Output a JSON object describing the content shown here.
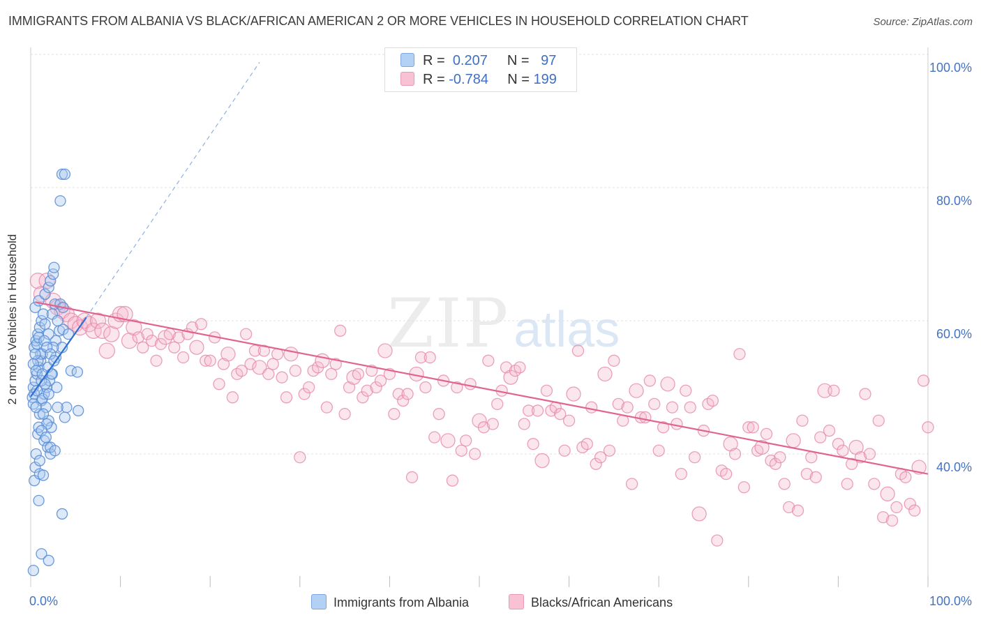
{
  "header": {
    "title": "IMMIGRANTS FROM ALBANIA VS BLACK/AFRICAN AMERICAN 2 OR MORE VEHICLES IN HOUSEHOLD CORRELATION CHART",
    "source": "Source: ZipAtlas.com"
  },
  "watermark": {
    "zip": "ZIP",
    "atlas": "atlas"
  },
  "legend": {
    "r_label": "R =",
    "n_label": "N =",
    "series1": {
      "r": "0.207",
      "n": "97"
    },
    "series2": {
      "r": "-0.784",
      "n": "199"
    }
  },
  "colors": {
    "albania_fill": "#a9c8f0",
    "albania_stroke": "#5b8fd6",
    "albania_line": "#2e6fd1",
    "black_fill": "#f7b6cd",
    "black_stroke": "#e58aa9",
    "black_line": "#e0648f",
    "tick_text": "#4472c4"
  },
  "chart_data": {
    "type": "scatter",
    "title": "IMMIGRANTS FROM ALBANIA VS BLACK/AFRICAN AMERICAN 2 OR MORE VEHICLES IN HOUSEHOLD CORRELATION CHART",
    "xlabel": "",
    "ylabel": "2 or more Vehicles in Household",
    "xlim": [
      0,
      100
    ],
    "ylim": [
      20,
      100
    ],
    "x_tick_labels": [
      "0.0%",
      "100.0%"
    ],
    "y_tick_labels": [
      "40.0%",
      "60.0%",
      "80.0%",
      "100.0%"
    ],
    "y_ticks": [
      40,
      60,
      80,
      100
    ],
    "grid": true,
    "legend_position": "top-center",
    "series": [
      {
        "name": "Immigrants from Albania",
        "r": 0.207,
        "n": 97,
        "trend": {
          "x": [
            0,
            6.2
          ],
          "y": [
            48.6,
            60.5
          ]
        },
        "trend_extension": {
          "x": [
            6.2,
            25.5
          ],
          "y": [
            60.5,
            98.8
          ]
        },
        "points": [
          [
            0.3,
            22.5
          ],
          [
            0.4,
            36
          ],
          [
            0.5,
            38
          ],
          [
            0.6,
            40
          ],
          [
            0.8,
            43
          ],
          [
            1.0,
            46
          ],
          [
            1.2,
            48
          ],
          [
            0.3,
            50
          ],
          [
            0.5,
            51
          ],
          [
            0.7,
            52
          ],
          [
            0.9,
            53
          ],
          [
            1.1,
            54
          ],
          [
            1.3,
            55
          ],
          [
            0.4,
            56
          ],
          [
            0.6,
            57
          ],
          [
            0.8,
            58
          ],
          [
            1.0,
            59
          ],
          [
            1.2,
            60
          ],
          [
            1.4,
            61
          ],
          [
            0.5,
            62
          ],
          [
            0.9,
            63
          ],
          [
            1.6,
            64
          ],
          [
            2.0,
            65
          ],
          [
            2.2,
            66
          ],
          [
            2.5,
            67
          ],
          [
            2.6,
            68
          ],
          [
            1.5,
            49
          ],
          [
            1.8,
            50
          ],
          [
            2.1,
            51
          ],
          [
            2.4,
            52
          ],
          [
            0.2,
            48.5
          ],
          [
            0.4,
            49
          ],
          [
            0.7,
            49.5
          ],
          [
            1.3,
            48.3
          ],
          [
            1.7,
            47
          ],
          [
            2.0,
            45
          ],
          [
            2.3,
            44
          ],
          [
            1.5,
            42
          ],
          [
            1.9,
            41
          ],
          [
            2.2,
            40
          ],
          [
            1.0,
            37
          ],
          [
            1.4,
            36.8
          ],
          [
            0.9,
            33
          ],
          [
            3.5,
            31
          ],
          [
            1.2,
            25
          ],
          [
            2.0,
            24
          ],
          [
            3.3,
            78
          ],
          [
            3.5,
            82
          ],
          [
            3.8,
            82
          ],
          [
            4.5,
            52.5
          ],
          [
            5.2,
            52.3
          ],
          [
            5.3,
            46.5
          ],
          [
            4.0,
            47
          ],
          [
            3.8,
            45.5
          ],
          [
            3.0,
            47
          ],
          [
            3.2,
            58.5
          ],
          [
            3.6,
            58.7
          ],
          [
            2.8,
            57
          ],
          [
            3.5,
            56
          ],
          [
            4.2,
            58
          ],
          [
            2.7,
            62.5
          ],
          [
            3.3,
            62.5
          ],
          [
            3.6,
            62
          ],
          [
            2.4,
            61
          ],
          [
            1.6,
            59.5
          ],
          [
            2.0,
            58
          ],
          [
            2.5,
            56
          ],
          [
            2.8,
            54.5
          ],
          [
            1.1,
            55
          ],
          [
            0.8,
            54
          ],
          [
            1.9,
            53
          ],
          [
            2.3,
            52
          ],
          [
            1.2,
            51
          ],
          [
            1.6,
            50.5
          ],
          [
            2.9,
            50
          ],
          [
            0.3,
            47.5
          ],
          [
            0.6,
            47
          ],
          [
            1.4,
            46
          ],
          [
            1.8,
            44.5
          ],
          [
            0.9,
            44
          ],
          [
            1.2,
            43.5
          ],
          [
            1.7,
            42.5
          ],
          [
            2.2,
            41
          ],
          [
            2.7,
            40.5
          ],
          [
            1.0,
            39
          ],
          [
            0.5,
            55
          ],
          [
            0.7,
            56.5
          ],
          [
            0.9,
            57.5
          ],
          [
            1.5,
            57
          ],
          [
            1.8,
            56
          ],
          [
            2.2,
            55
          ],
          [
            2.6,
            54
          ],
          [
            0.3,
            53.5
          ],
          [
            0.6,
            52.5
          ],
          [
            1.3,
            52
          ],
          [
            3.0,
            60
          ],
          [
            2.0,
            49
          ]
        ]
      },
      {
        "name": "Blacks/African Americans",
        "r": -0.784,
        "n": 199,
        "trend": {
          "x": [
            0.5,
            100
          ],
          "y": [
            62.8,
            37
          ]
        },
        "points": [
          [
            0.8,
            66
          ],
          [
            1.2,
            64
          ],
          [
            1.8,
            66
          ],
          [
            2.5,
            63
          ],
          [
            3.0,
            62
          ],
          [
            3.5,
            61.5
          ],
          [
            4.0,
            61
          ],
          [
            4.5,
            60
          ],
          [
            5.0,
            59.5
          ],
          [
            5.5,
            59
          ],
          [
            6.0,
            60
          ],
          [
            6.5,
            59.5
          ],
          [
            7.0,
            58.5
          ],
          [
            7.5,
            60
          ],
          [
            8.0,
            58.5
          ],
          [
            8.5,
            55.5
          ],
          [
            9.0,
            58
          ],
          [
            9.5,
            60
          ],
          [
            10.0,
            61
          ],
          [
            10.5,
            61
          ],
          [
            11.0,
            57
          ],
          [
            11.5,
            59
          ],
          [
            12.0,
            57.5
          ],
          [
            12.5,
            56
          ],
          [
            13.0,
            58
          ],
          [
            13.5,
            57
          ],
          [
            14.0,
            54
          ],
          [
            14.5,
            56.5
          ],
          [
            15.0,
            57.5
          ],
          [
            15.5,
            58
          ],
          [
            16.0,
            56
          ],
          [
            16.5,
            57.5
          ],
          [
            17.0,
            54.5
          ],
          [
            17.5,
            58
          ],
          [
            18.0,
            59
          ],
          [
            18.5,
            56
          ],
          [
            19.0,
            59.5
          ],
          [
            19.5,
            54
          ],
          [
            20.0,
            54
          ],
          [
            20.5,
            57.5
          ],
          [
            21.0,
            50.5
          ],
          [
            21.5,
            53.5
          ],
          [
            22.0,
            55
          ],
          [
            22.5,
            48.5
          ],
          [
            23.0,
            52
          ],
          [
            23.5,
            52.5
          ],
          [
            24.0,
            58
          ],
          [
            24.5,
            53.5
          ],
          [
            25.0,
            55.5
          ],
          [
            25.5,
            53
          ],
          [
            26.0,
            55.5
          ],
          [
            26.5,
            52
          ],
          [
            27.0,
            53.5
          ],
          [
            27.5,
            55
          ],
          [
            28.0,
            51.5
          ],
          [
            28.5,
            48.5
          ],
          [
            29.0,
            55
          ],
          [
            29.5,
            52.5
          ],
          [
            30.0,
            39.5
          ],
          [
            30.5,
            49
          ],
          [
            31.0,
            50
          ],
          [
            31.5,
            52.5
          ],
          [
            32.0,
            53
          ],
          [
            32.5,
            54
          ],
          [
            33.0,
            47
          ],
          [
            33.5,
            52
          ],
          [
            34.0,
            53.5
          ],
          [
            34.5,
            58.5
          ],
          [
            35.0,
            46
          ],
          [
            35.5,
            50
          ],
          [
            36.0,
            51.5
          ],
          [
            36.5,
            52
          ],
          [
            37.0,
            48.5
          ],
          [
            37.5,
            49.5
          ],
          [
            38.0,
            52.5
          ],
          [
            38.5,
            50
          ],
          [
            39.0,
            51
          ],
          [
            39.5,
            55.5
          ],
          [
            40.0,
            52
          ],
          [
            40.5,
            46
          ],
          [
            41.0,
            49
          ],
          [
            41.5,
            48
          ],
          [
            42.0,
            49
          ],
          [
            42.5,
            36.5
          ],
          [
            43.0,
            52
          ],
          [
            43.5,
            54.5
          ],
          [
            44.0,
            50
          ],
          [
            44.5,
            54.5
          ],
          [
            45.0,
            42.5
          ],
          [
            45.5,
            46
          ],
          [
            46.0,
            51
          ],
          [
            46.5,
            42
          ],
          [
            47.0,
            36
          ],
          [
            47.5,
            50
          ],
          [
            48.0,
            40.5
          ],
          [
            48.5,
            42
          ],
          [
            49.0,
            50.5
          ],
          [
            49.5,
            40
          ],
          [
            50.0,
            45
          ],
          [
            50.5,
            44
          ],
          [
            51.0,
            54
          ],
          [
            51.5,
            44.5
          ],
          [
            52.0,
            47.5
          ],
          [
            52.5,
            49.5
          ],
          [
            53.0,
            53
          ],
          [
            53.5,
            51.5
          ],
          [
            54.0,
            52.5
          ],
          [
            54.5,
            53
          ],
          [
            55.0,
            44.5
          ],
          [
            55.5,
            46.5
          ],
          [
            56.0,
            41.5
          ],
          [
            56.5,
            46.5
          ],
          [
            57.0,
            39
          ],
          [
            57.5,
            49.5
          ],
          [
            58.0,
            46.5
          ],
          [
            58.5,
            47
          ],
          [
            59.0,
            46
          ],
          [
            59.5,
            40.5
          ],
          [
            60.0,
            45
          ],
          [
            60.5,
            49
          ],
          [
            61.0,
            55.5
          ],
          [
            61.5,
            41
          ],
          [
            62.0,
            41.5
          ],
          [
            62.5,
            47
          ],
          [
            63.0,
            38.5
          ],
          [
            63.5,
            39.5
          ],
          [
            64.0,
            52
          ],
          [
            64.5,
            40.5
          ],
          [
            65.0,
            54
          ],
          [
            65.5,
            47.5
          ],
          [
            66.0,
            45
          ],
          [
            66.5,
            47
          ],
          [
            67.0,
            35.5
          ],
          [
            67.5,
            49.5
          ],
          [
            68.0,
            45.5
          ],
          [
            68.5,
            45.5
          ],
          [
            69.0,
            51
          ],
          [
            69.5,
            47.5
          ],
          [
            70.0,
            40.5
          ],
          [
            70.5,
            44
          ],
          [
            71.0,
            50.5
          ],
          [
            71.5,
            47
          ],
          [
            72.0,
            44.5
          ],
          [
            72.5,
            37
          ],
          [
            73.0,
            49.5
          ],
          [
            73.5,
            47
          ],
          [
            74.0,
            39.5
          ],
          [
            74.5,
            31
          ],
          [
            75.0,
            43.5
          ],
          [
            75.5,
            47.5
          ],
          [
            76.0,
            48
          ],
          [
            76.5,
            27
          ],
          [
            77.0,
            37.5
          ],
          [
            77.5,
            37
          ],
          [
            78.0,
            41.5
          ],
          [
            78.5,
            40
          ],
          [
            79.0,
            55
          ],
          [
            79.5,
            35
          ],
          [
            80.0,
            44
          ],
          [
            80.5,
            44
          ],
          [
            81.0,
            40.5
          ],
          [
            81.5,
            41
          ],
          [
            82.0,
            43
          ],
          [
            82.5,
            39
          ],
          [
            83.0,
            38.5
          ],
          [
            83.5,
            39.5
          ],
          [
            84.0,
            35.5
          ],
          [
            84.5,
            32
          ],
          [
            85.0,
            42
          ],
          [
            85.5,
            31.5
          ],
          [
            86.0,
            45
          ],
          [
            86.5,
            37
          ],
          [
            87.0,
            39.5
          ],
          [
            87.5,
            36.5
          ],
          [
            88.0,
            42.5
          ],
          [
            88.5,
            49.5
          ],
          [
            89.0,
            43.5
          ],
          [
            89.5,
            49.5
          ],
          [
            90.0,
            41.5
          ],
          [
            90.5,
            40.5
          ],
          [
            91.0,
            35.5
          ],
          [
            91.5,
            38.5
          ],
          [
            92.0,
            41
          ],
          [
            92.5,
            39.5
          ],
          [
            93.0,
            49
          ],
          [
            93.5,
            40
          ],
          [
            94.0,
            35.5
          ],
          [
            94.5,
            45
          ],
          [
            95.0,
            30.5
          ],
          [
            95.5,
            34
          ],
          [
            96.0,
            30
          ],
          [
            96.5,
            32
          ],
          [
            97.0,
            37
          ],
          [
            97.5,
            36.5
          ],
          [
            98.0,
            32.5
          ],
          [
            98.5,
            31.5
          ],
          [
            99.0,
            38
          ],
          [
            99.5,
            51
          ],
          [
            100.0,
            44
          ]
        ]
      }
    ]
  },
  "bottom_legend": {
    "albania_label": "Immigrants from Albania",
    "black_label": "Blacks/African Americans"
  }
}
